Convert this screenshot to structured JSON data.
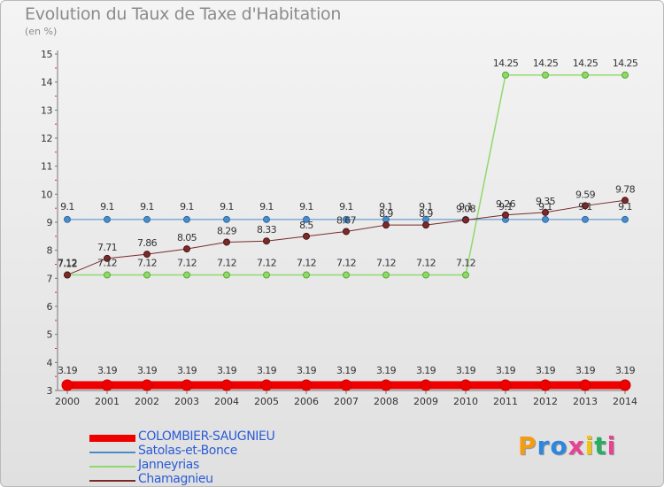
{
  "header": {
    "title": "Evolution du Taux de Taxe d'Habitation",
    "subtitle": "(en %)"
  },
  "logo": {
    "text": "Proxiti",
    "letters": [
      {
        "ch": "P",
        "color": "#f39c12"
      },
      {
        "ch": "r",
        "color": "#2e86de"
      },
      {
        "ch": "o",
        "color": "#2e86de"
      },
      {
        "ch": "x",
        "color": "#e84393"
      },
      {
        "ch": "i",
        "color": "#f1c40f"
      },
      {
        "ch": "t",
        "color": "#27ae60"
      },
      {
        "ch": "i",
        "color": "#e84393"
      }
    ]
  },
  "chart_data": {
    "type": "line",
    "title": "Evolution du Taux de Taxe d'Habitation",
    "subtitle": "(en %)",
    "x": [
      2000,
      2001,
      2002,
      2003,
      2004,
      2005,
      2006,
      2007,
      2008,
      2009,
      2010,
      2011,
      2012,
      2013,
      2014
    ],
    "ylim": [
      3,
      15
    ],
    "yticks": [
      3,
      4,
      5,
      6,
      7,
      8,
      9,
      10,
      11,
      12,
      13,
      14,
      15
    ],
    "grid": false,
    "legend_position": "bottom-left",
    "series": [
      {
        "name": "COLOMBIER-SAUGNIEU",
        "color": "#ee0000",
        "width": 9,
        "point_radius": 6,
        "label_offset": -13,
        "values": [
          3.19,
          3.19,
          3.19,
          3.19,
          3.19,
          3.19,
          3.19,
          3.19,
          3.19,
          3.19,
          3.19,
          3.19,
          3.19,
          3.19,
          3.19
        ],
        "labels": [
          "3.19",
          "3.19",
          "3.19",
          "3.19",
          "3.19",
          "3.19",
          "3.19",
          "3.19",
          "3.19",
          "3.19",
          "3.19",
          "3.19",
          "3.19",
          "3.19",
          "3.19"
        ]
      },
      {
        "name": "Satolas-et-Bonce",
        "color": "#4a8cc8",
        "width": 1,
        "point_radius": 3.5,
        "label_offset": -11,
        "values": [
          9.1,
          9.1,
          9.1,
          9.1,
          9.1,
          9.1,
          9.1,
          9.1,
          9.1,
          9.1,
          9.1,
          9.1,
          9.1,
          9.1,
          9.1
        ],
        "labels": [
          "9.1",
          "9.1",
          "9.1",
          "9.1",
          "9.1",
          "9.1",
          "9.1",
          "9.1",
          "9.1",
          "9.1",
          "9.1",
          "9.1",
          "9.1",
          "9.1",
          "9.1"
        ]
      },
      {
        "name": "Janneyrias",
        "color": "#8fd96b",
        "width": 1.5,
        "point_radius": 3.5,
        "label_offset": -10,
        "values": [
          7.12,
          7.12,
          7.12,
          7.12,
          7.12,
          7.12,
          7.12,
          7.12,
          7.12,
          7.12,
          7.12,
          14.25,
          14.25,
          14.25,
          14.25
        ],
        "labels": [
          "7.12",
          "7.12",
          "7.12",
          "7.12",
          "7.12",
          "7.12",
          "7.12",
          "7.12",
          "7.12",
          "7.12",
          "7.12",
          "14.25",
          "14.25",
          "14.25",
          "14.25"
        ]
      },
      {
        "name": "Chamagnieu",
        "color": "#7a2a2a",
        "width": 1,
        "point_radius": 3.5,
        "label_offset": -9,
        "values": [
          7.12,
          7.71,
          7.86,
          8.05,
          8.29,
          8.33,
          8.5,
          8.67,
          8.9,
          8.9,
          9.08,
          9.26,
          9.35,
          9.59,
          9.78
        ],
        "labels": [
          "7.12",
          "7.71",
          "7.86",
          "8.05",
          "8.29",
          "8.33",
          "8.5",
          "8.67",
          "8.9",
          "8.9",
          "9.08",
          "9.26",
          "9.35",
          "9.59",
          "9.78"
        ]
      }
    ]
  }
}
